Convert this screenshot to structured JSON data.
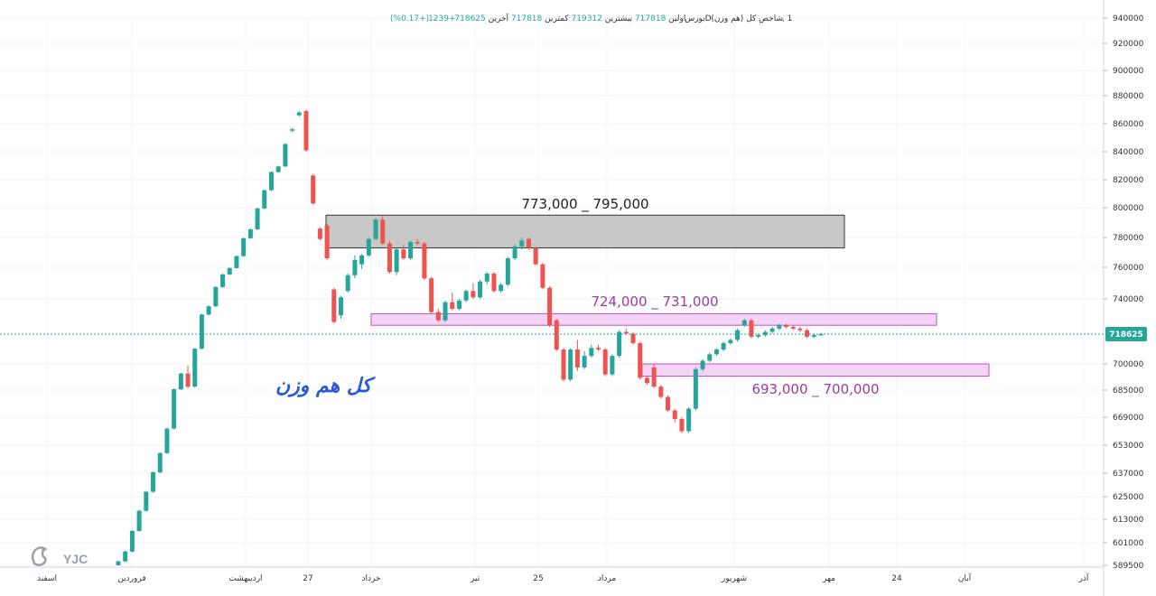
{
  "header": {
    "symbol": "شاخص کل (هم وزن)",
    "interval": "D",
    "exchange": "بورس",
    "suffix": "1 ,",
    "open_label": "اولین",
    "open_value": "717818",
    "high_label": "بیشترین",
    "high_value": "719312",
    "low_label": "کمترین",
    "low_value": "717818",
    "close_label": "آخرین",
    "close_value": "718625",
    "change": "+1239",
    "change_pct": "(+0.17%)"
  },
  "watermark": "کل هم وزن",
  "logo": {
    "text": "YJC"
  },
  "colors": {
    "up": "#26a69a",
    "down": "#ef5350",
    "resistance_zone": "#c8c8c8",
    "pink_zone": "#f3d4f6",
    "pink_border": "#c44dc9",
    "zone_text_dark": "#222222",
    "zone_text_purple": "#9c3ba3",
    "price_tag": "#26a69a"
  },
  "last_price": "718625",
  "zones": [
    {
      "label": "773,000 _ 795,000",
      "low": 773000,
      "high": 795000
    },
    {
      "label": "724,000 _ 731,000",
      "low": 724000,
      "high": 731000
    },
    {
      "label": "693,000 _ 700,000",
      "low": 693000,
      "high": 700000
    }
  ],
  "chart_data": {
    "type": "candlestick",
    "y_ticks": [
      940000,
      920000,
      900000,
      880000,
      860000,
      840000,
      820000,
      800000,
      780000,
      760000,
      740000,
      718625,
      700000,
      685000,
      669000,
      653000,
      637000,
      625000,
      613000,
      601000,
      589500
    ],
    "y_tick_labels": [
      "940000",
      "920000",
      "900000",
      "880000",
      "860000",
      "840000",
      "820000",
      "800000",
      "780000",
      "760000",
      "740000",
      "718625",
      "700000",
      "685000",
      "669000",
      "653000",
      "637000",
      "625000",
      "613000",
      "601000",
      "589500"
    ],
    "x_labels": [
      "اسفند",
      "فروردین",
      "اردیبهشت",
      "27",
      "خرداد",
      "تیر",
      "25",
      "مرداد",
      "شهریور",
      "مهر",
      "24",
      "آبان",
      "آذر"
    ],
    "candles": [
      [
        589000,
        592000,
        588000,
        591500
      ],
      [
        591500,
        597000,
        591000,
        596500
      ],
      [
        596500,
        607500,
        596000,
        607000
      ],
      [
        607000,
        618000,
        606500,
        617500
      ],
      [
        617500,
        628000,
        617000,
        627500
      ],
      [
        627500,
        638000,
        627000,
        637500
      ],
      [
        637500,
        649000,
        637000,
        648500
      ],
      [
        648500,
        663000,
        648000,
        662500
      ],
      [
        662500,
        686000,
        662000,
        685500
      ],
      [
        685500,
        695000,
        685000,
        694500
      ],
      [
        694500,
        699000,
        686000,
        687000
      ],
      [
        687000,
        710000,
        686500,
        709500
      ],
      [
        709500,
        731000,
        709000,
        730500
      ],
      [
        730500,
        736000,
        730000,
        735500
      ],
      [
        735500,
        748000,
        735000,
        747500
      ],
      [
        747500,
        756000,
        747000,
        755500
      ],
      [
        755500,
        760000,
        755000,
        759500
      ],
      [
        759500,
        768000,
        759000,
        767500
      ],
      [
        767500,
        780000,
        767000,
        779500
      ],
      [
        779500,
        786000,
        779000,
        785500
      ],
      [
        785500,
        800000,
        785000,
        799500
      ],
      [
        799500,
        813000,
        799000,
        812500
      ],
      [
        812500,
        826000,
        812000,
        825500
      ],
      [
        825500,
        830000,
        825000,
        829500
      ],
      [
        829500,
        846000,
        829000,
        845500
      ],
      [
        855000,
        857000,
        854000,
        856000
      ],
      [
        866000,
        869000,
        865000,
        868000
      ],
      [
        869000,
        870000,
        840000,
        841000
      ],
      [
        823000,
        824000,
        802000,
        803000
      ],
      [
        786000,
        787000,
        778000,
        779000
      ],
      [
        788000,
        789000,
        765000,
        766000
      ],
      [
        746000,
        747000,
        725000,
        726000
      ],
      [
        730000,
        742000,
        728000,
        741000
      ],
      [
        745000,
        756000,
        744000,
        755000
      ],
      [
        755000,
        768000,
        753000,
        765000
      ],
      [
        762000,
        769000,
        759000,
        768000
      ],
      [
        768000,
        780000,
        767000,
        779000
      ],
      [
        779000,
        793000,
        778000,
        792000
      ],
      [
        792000,
        795000,
        775000,
        776000
      ],
      [
        776000,
        778000,
        756000,
        757000
      ],
      [
        757000,
        773000,
        755000,
        772000
      ],
      [
        772000,
        775000,
        765000,
        766000
      ],
      [
        766000,
        778000,
        765000,
        777000
      ],
      [
        777000,
        779000,
        775000,
        776000
      ],
      [
        776000,
        777000,
        752000,
        753000
      ],
      [
        753000,
        754000,
        731000,
        732000
      ],
      [
        732000,
        734000,
        726000,
        727000
      ],
      [
        727000,
        739000,
        726000,
        738000
      ],
      [
        738000,
        744000,
        733000,
        734000
      ],
      [
        734000,
        740000,
        733000,
        739000
      ],
      [
        739000,
        746000,
        738000,
        745000
      ],
      [
        745000,
        750000,
        740000,
        741000
      ],
      [
        741000,
        752000,
        740000,
        751000
      ],
      [
        751000,
        757000,
        749000,
        756000
      ],
      [
        756000,
        757000,
        744000,
        745000
      ],
      [
        745000,
        750000,
        744000,
        749000
      ],
      [
        749000,
        767000,
        748000,
        766000
      ],
      [
        766000,
        775000,
        765000,
        774000
      ],
      [
        774000,
        780000,
        772000,
        778000
      ],
      [
        779000,
        780000,
        772000,
        773000
      ],
      [
        773000,
        774000,
        761000,
        762000
      ],
      [
        762000,
        763000,
        746000,
        747000
      ],
      [
        747000,
        748000,
        723000,
        724000
      ],
      [
        727000,
        728000,
        708000,
        709000
      ],
      [
        709000,
        710000,
        690000,
        691000
      ],
      [
        691000,
        710000,
        690000,
        709000
      ],
      [
        709000,
        715000,
        696000,
        698000
      ],
      [
        698000,
        708000,
        697000,
        705000
      ],
      [
        705000,
        712000,
        704000,
        710000
      ],
      [
        710000,
        712000,
        708000,
        709000
      ],
      [
        709000,
        710000,
        693000,
        694000
      ],
      [
        694000,
        706000,
        693000,
        705000
      ],
      [
        705000,
        721000,
        704000,
        720000
      ],
      [
        720000,
        722000,
        718000,
        719000
      ],
      [
        719000,
        720000,
        712000,
        713000
      ],
      [
        713000,
        714000,
        691000,
        692000
      ],
      [
        692000,
        693000,
        688000,
        689000
      ],
      [
        698000,
        700000,
        686000,
        687000
      ],
      [
        687000,
        688000,
        680000,
        681000
      ],
      [
        681000,
        682000,
        672000,
        673000
      ],
      [
        673000,
        674000,
        666000,
        668000
      ],
      [
        668000,
        669000,
        660000,
        661000
      ],
      [
        661000,
        675000,
        660000,
        674000
      ],
      [
        674000,
        698000,
        673000,
        697000
      ],
      [
        697000,
        703000,
        696000,
        702000
      ],
      [
        702000,
        707000,
        701000,
        706000
      ],
      [
        706000,
        710000,
        705000,
        709000
      ],
      [
        709000,
        714000,
        708000,
        713000
      ],
      [
        713000,
        716000,
        712000,
        715000
      ],
      [
        715000,
        722000,
        714000,
        721000
      ],
      [
        724000,
        728000,
        723000,
        727000
      ],
      [
        727000,
        728000,
        716000,
        717000
      ],
      [
        717000,
        719000,
        716000,
        718000
      ],
      [
        718000,
        721000,
        717000,
        720000
      ],
      [
        720000,
        723000,
        719000,
        722000
      ],
      [
        722000,
        725000,
        721000,
        724000
      ],
      [
        724000,
        725000,
        722000,
        723000
      ],
      [
        723000,
        724000,
        721000,
        722000
      ],
      [
        722000,
        723000,
        720000,
        721000
      ],
      [
        721000,
        722000,
        716000,
        717000
      ],
      [
        717000,
        719000,
        716000,
        718000
      ],
      [
        717818,
        719312,
        717818,
        718625
      ]
    ]
  }
}
